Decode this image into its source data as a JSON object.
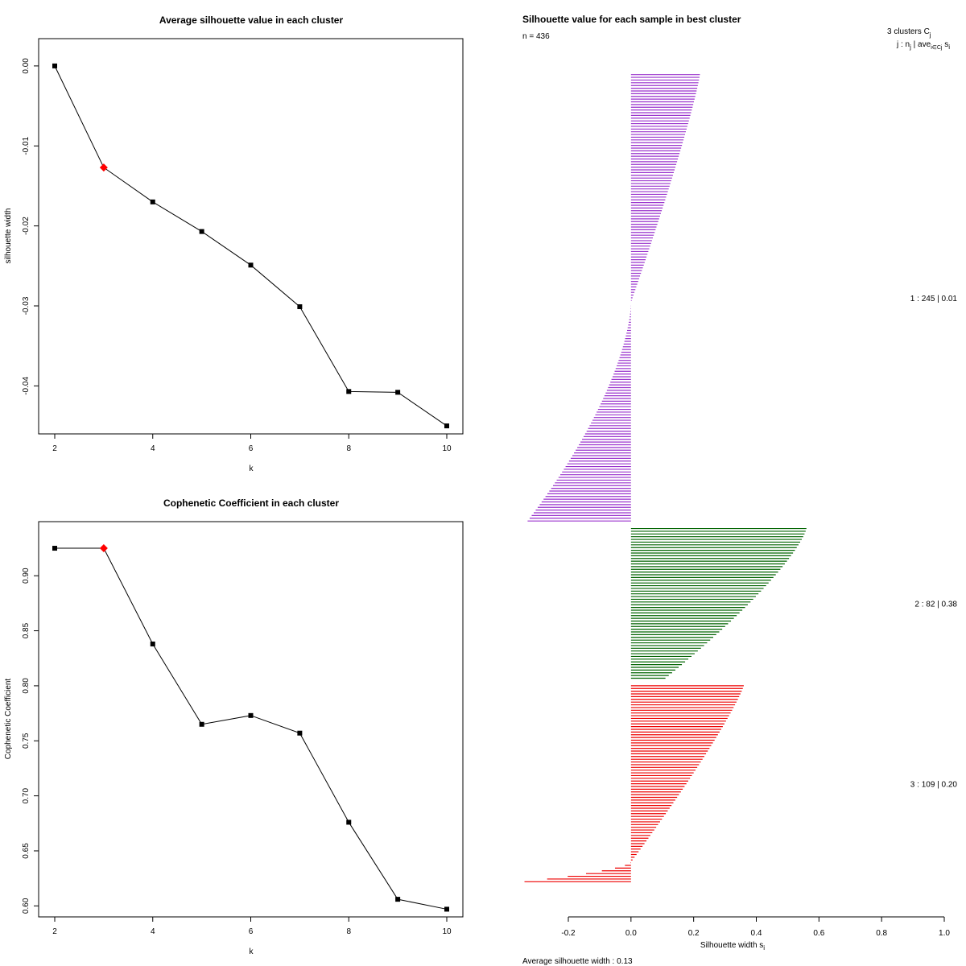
{
  "chart_data": [
    {
      "type": "line",
      "title": "Average silhouette value in each cluster",
      "xlabel": "k",
      "ylabel": "silhouette width",
      "x": [
        2,
        3,
        4,
        5,
        6,
        7,
        8,
        9,
        10
      ],
      "values": [
        0.0,
        -0.0127,
        -0.017,
        -0.0207,
        -0.0249,
        -0.0301,
        -0.0407,
        -0.0408,
        -0.045
      ],
      "highlight_k": 3,
      "highlight_color": "#ff0000",
      "xlim": [
        2,
        10
      ],
      "ylim": [
        -0.046,
        0.0016
      ],
      "xticks": [
        2,
        4,
        6,
        8,
        10
      ],
      "xtick_labels": [
        "2",
        "4",
        "6",
        "8",
        "10"
      ],
      "yticks": [
        0.0,
        -0.01,
        -0.02,
        -0.03,
        -0.04
      ],
      "ytick_labels": [
        "0.00",
        "-0.01",
        "-0.02",
        "-0.03",
        "-0.04"
      ]
    },
    {
      "type": "line",
      "title": "Cophenetic Coefficient in each cluster",
      "xlabel": "k",
      "ylabel": "Cophenetic Coefficient",
      "x": [
        2,
        3,
        4,
        5,
        6,
        7,
        8,
        9,
        10
      ],
      "values": [
        0.925,
        0.925,
        0.838,
        0.765,
        0.773,
        0.757,
        0.676,
        0.606,
        0.597
      ],
      "highlight_k": 3,
      "highlight_color": "#ff0000",
      "xlim": [
        2,
        10
      ],
      "ylim": [
        0.59,
        0.936
      ],
      "xticks": [
        2,
        4,
        6,
        8,
        10
      ],
      "xtick_labels": [
        "2",
        "4",
        "6",
        "8",
        "10"
      ],
      "yticks": [
        0.6,
        0.65,
        0.7,
        0.75,
        0.8,
        0.85,
        0.9
      ],
      "ytick_labels": [
        "0.60",
        "0.65",
        "0.70",
        "0.75",
        "0.80",
        "0.85",
        "0.90"
      ]
    },
    {
      "type": "bar",
      "orientation": "horizontal",
      "title": "Silhouette value for each sample in best cluster",
      "n_label": "n = 436",
      "legend_header": "3  clusters  C",
      "legend_header_sub": "j",
      "legend_sub_header": "j :  n",
      "legend_sub_header_sub": "j",
      "legend_sub_header_rest": " | ave",
      "legend_sub_header_sub2": "i∈Cj",
      "legend_sub_header_end": " s",
      "legend_sub_header_sub3": "i",
      "xlabel": "Silhouette width s",
      "xlabel_sub": "i",
      "avg_text": "Average silhouette width :  0.13",
      "xlim": [
        -0.2,
        1.0
      ],
      "xticks": [
        -0.2,
        0.0,
        0.2,
        0.4,
        0.6,
        0.8,
        1.0
      ],
      "xtick_labels": [
        "-0.2",
        "0.0",
        "0.2",
        "0.4",
        "0.6",
        "0.8",
        "1.0"
      ],
      "series": [
        {
          "name": "cluster 1",
          "label": "1 :   245  |  0.01",
          "color": "#9a32cd",
          "n": 245,
          "bars": 165,
          "max": 0.22,
          "min": -0.33,
          "zero_at": 0.51
        },
        {
          "name": "cluster 2",
          "label": "2 :   82  |  0.38",
          "color": "#006400",
          "n": 82,
          "bars": 56,
          "max": 0.56,
          "min": 0.11,
          "zero_at": 1.0
        },
        {
          "name": "cluster 3",
          "label": "3 :   109  |  0.20",
          "color": "#ee0000",
          "n": 109,
          "bars": 73,
          "max": 0.36,
          "min": -0.34,
          "zero_at": 0.9
        }
      ]
    }
  ]
}
